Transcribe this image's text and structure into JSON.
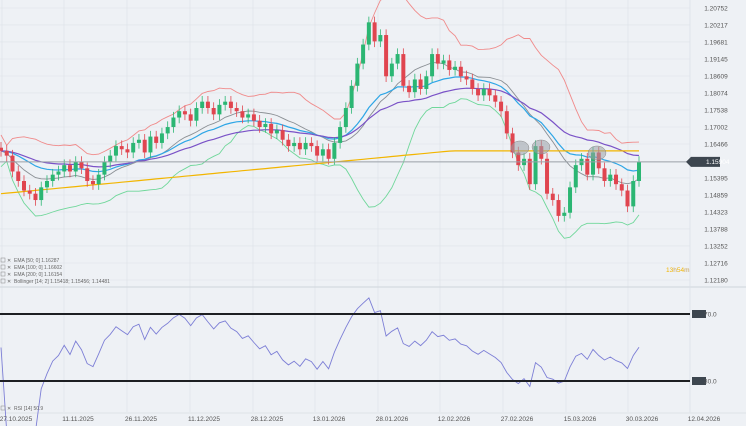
{
  "chart_data": [
    {
      "type": "candlestick",
      "price_axis_ticks": [
        "1.20752",
        "1.20217",
        "1.19681",
        "1.19145",
        "1.18609",
        "1.18074",
        "1.17538",
        "1.17002",
        "1.16466",
        "1.15395",
        "1.14859",
        "1.14323",
        "1.13788",
        "1.13252",
        "1.12716",
        "1.12180"
      ],
      "ylim": [
        1.1218,
        1.20752
      ],
      "current_price": "1.15904",
      "timer": {
        "hours": "13",
        "h": "h",
        "minutes": "54",
        "m": "m"
      },
      "grid": true,
      "closes": [
        1.1625,
        1.161,
        1.156,
        1.153,
        1.15,
        1.149,
        1.147,
        1.151,
        1.153,
        1.155,
        1.156,
        1.158,
        1.156,
        1.159,
        1.157,
        1.153,
        1.152,
        1.155,
        1.159,
        1.161,
        1.164,
        1.163,
        1.162,
        1.165,
        1.166,
        1.162,
        1.167,
        1.165,
        1.168,
        1.17,
        1.173,
        1.175,
        1.174,
        1.172,
        1.176,
        1.178,
        1.176,
        1.174,
        1.177,
        1.178,
        1.176,
        1.175,
        1.173,
        1.174,
        1.172,
        1.17,
        1.171,
        1.168,
        1.169,
        1.166,
        1.164,
        1.165,
        1.163,
        1.165,
        1.164,
        1.161,
        1.163,
        1.16,
        1.165,
        1.17,
        1.176,
        1.183,
        1.19,
        1.196,
        1.203,
        1.197,
        1.199,
        1.186,
        1.19,
        1.193,
        1.183,
        1.181,
        1.185,
        1.182,
        1.186,
        1.193,
        1.19,
        1.191,
        1.188,
        1.189,
        1.186,
        1.185,
        1.182,
        1.18,
        1.182,
        1.18,
        1.178,
        1.175,
        1.168,
        1.162,
        1.158,
        1.16,
        1.152,
        1.164,
        1.16,
        1.149,
        1.147,
        1.142,
        1.143,
        1.151,
        1.158,
        1.16,
        1.155,
        1.162,
        1.157,
        1.153,
        1.155,
        1.152,
        1.15,
        1.145,
        1.153,
        1.159
      ],
      "legend": [
        {
          "label": "EMA [50; 0] 1.16287",
          "period": 50,
          "color": "#2ea6e6"
        },
        {
          "label": "EMA [100; 0] 1.16602",
          "period": 100,
          "color": "#7a52c7"
        },
        {
          "label": "EMA [200; 0] 1.16154",
          "period": 200,
          "color": "#f2b500"
        },
        {
          "label": "Bollinger [14; 2] 1.15418; 1.15456; 1.14481",
          "period": 14,
          "upper_color": "#f08a8a",
          "middle_color": "#8a8f94",
          "lower_color": "#6fd79a"
        }
      ],
      "colors": {
        "up": "#2bb673",
        "down": "#e0454f"
      }
    },
    {
      "type": "line",
      "legend": "RSI [14] 50.9",
      "levels": [
        "70.0",
        "30.0"
      ],
      "color": "#7d7fd6"
    }
  ],
  "x_axis_dates": [
    "27.10.2025",
    "11.11.2025",
    "26.11.2025",
    "11.12.2025",
    "28.12.2025",
    "13.01.2026",
    "28.01.2026",
    "12.02.2026",
    "27.02.2026",
    "15.03.2026",
    "30.03.2026",
    "12.04.2026"
  ]
}
